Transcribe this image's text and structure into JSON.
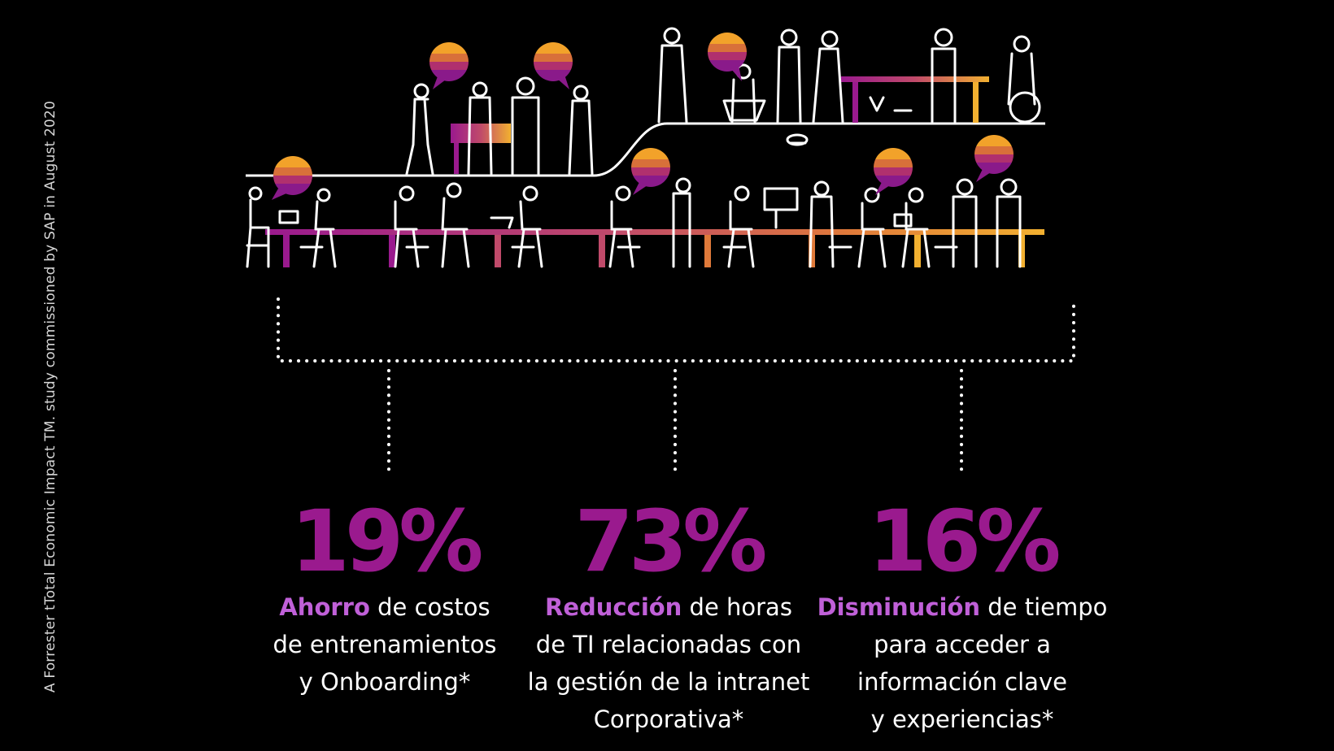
{
  "source_note": "A Forrester tTotal Economic Impact TM. study commissioned by SAP in August 2020",
  "colors": {
    "background": "#000000",
    "stat_value": "#9a1a8e",
    "stat_emphasis": "#c060d8",
    "bubble_top": "#f2a22a",
    "bubble_mid": "#d8703a",
    "bubble_low": "#b0306e",
    "bubble_bottom": "#8a1a8a"
  },
  "illustration": {
    "icon": "office-people-illustration"
  },
  "stats": [
    {
      "value": "19%",
      "emphasis": "Ahorro",
      "line1_rest": " de costos",
      "line2": "de entrenamientos",
      "line3": "y Onboarding*",
      "line4": ""
    },
    {
      "value": "73%",
      "emphasis": "Reducción",
      "line1_rest": " de horas",
      "line2": "de TI relacionadas con",
      "line3": "la gestión de la intranet",
      "line4": "Corporativa*"
    },
    {
      "value": "16%",
      "emphasis": "Disminución",
      "line1_rest": " de tiempo",
      "line2": "para acceder a",
      "line3": "información clave",
      "line4": "y experiencias*"
    }
  ]
}
